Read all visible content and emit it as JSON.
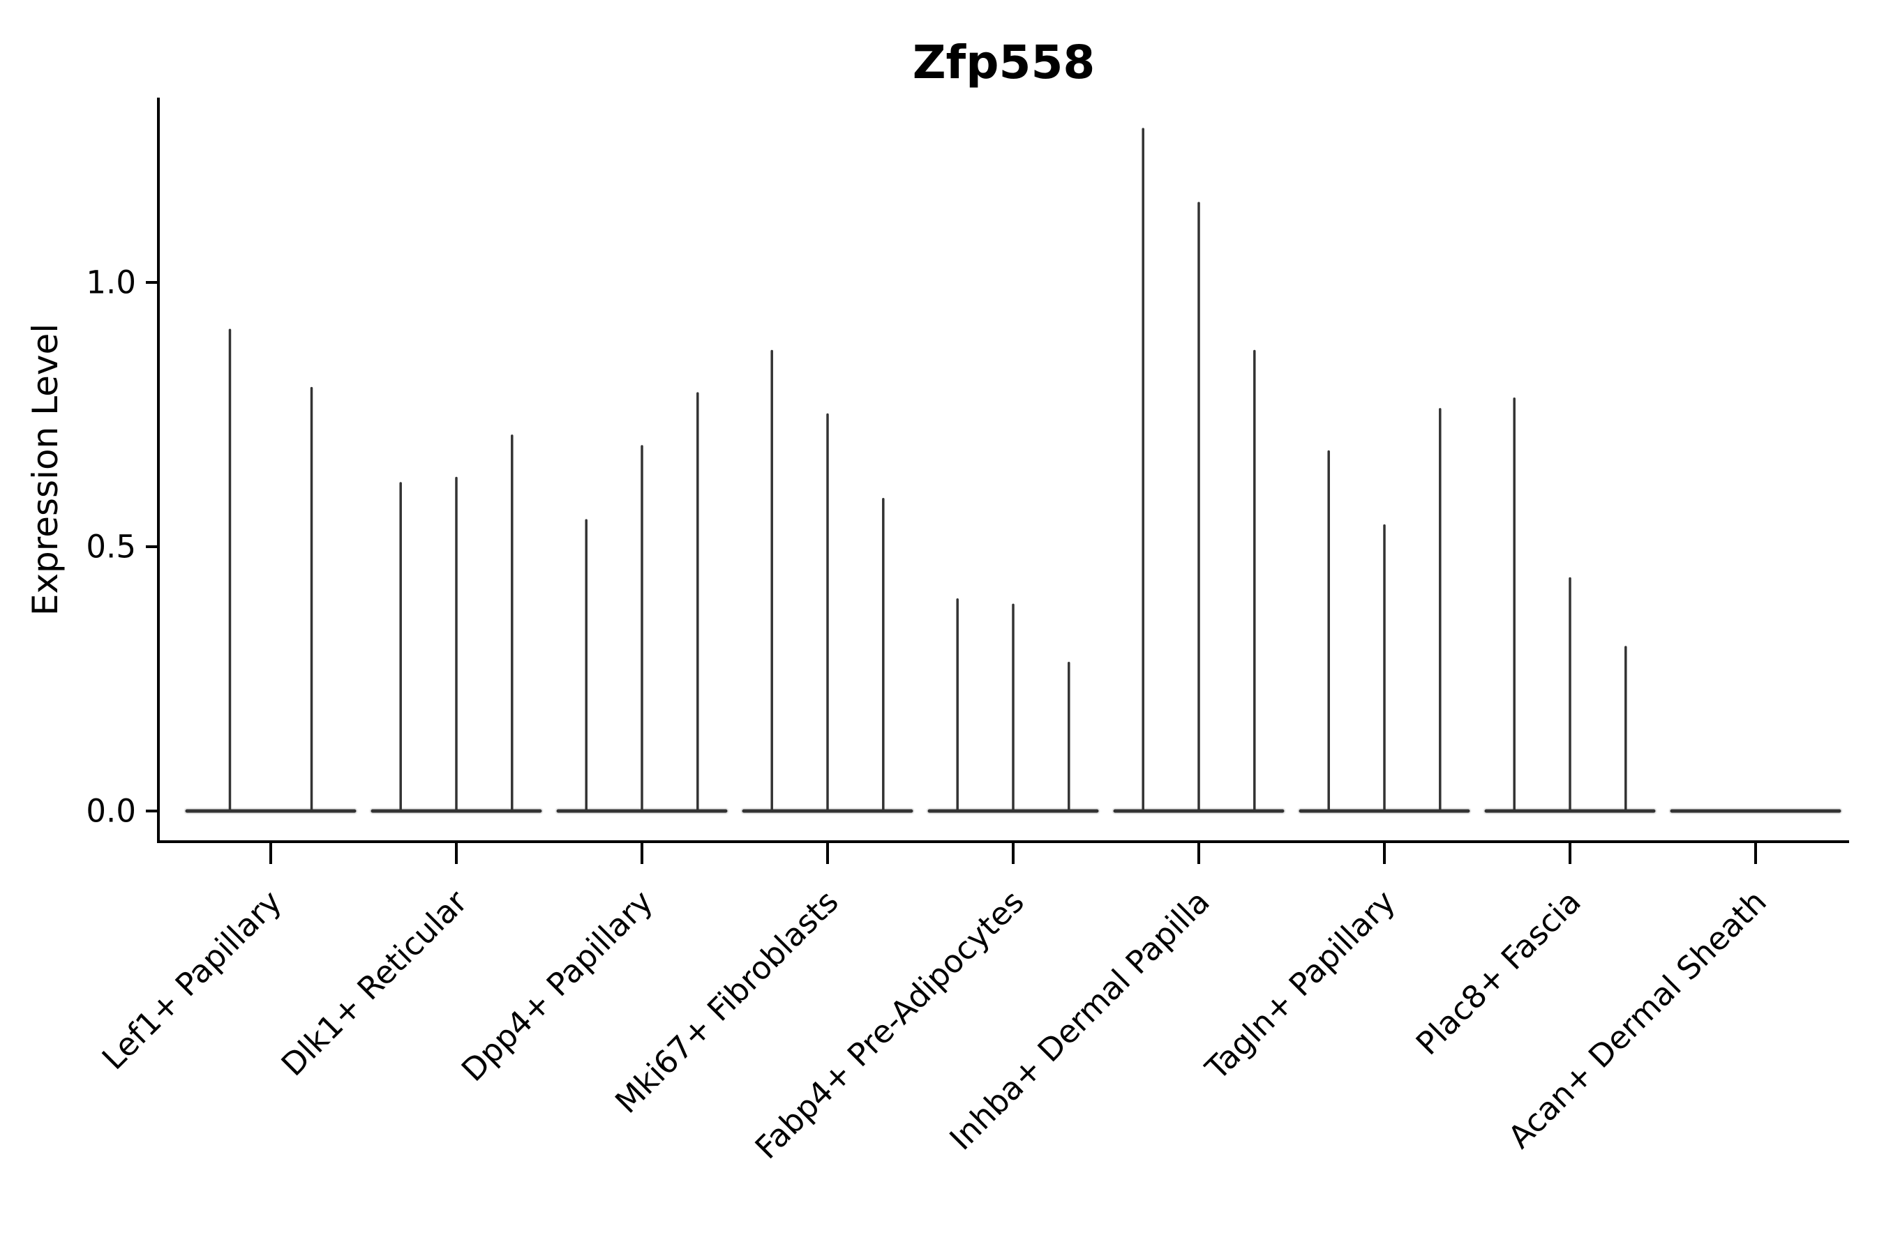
{
  "figure": {
    "background": "#ffffff",
    "ink_color": "#000000",
    "violin_color": "#333333",
    "violin_fill_hint": "#bbbbbb"
  },
  "chart_data": {
    "type": "violin",
    "title": "Zfp558",
    "xlabel": "",
    "ylabel": "Expression Level",
    "grid": false,
    "legend_position": "none",
    "ylim": [
      -0.06,
      1.35
    ],
    "ytick_labels": [
      "0.0",
      "0.5",
      "1.0"
    ],
    "ytick_values": [
      0.0,
      0.5,
      1.0
    ],
    "categories": [
      "Lef1+ Papillary",
      "Dlk1+ Reticular",
      "Dpp4+ Papillary",
      "Mki67+ Fibroblasts",
      "Fabp4+ Pre-Adipocytes",
      "Inhba+ Dermal Papilla",
      "Tagln+ Papillary",
      "Plac8+ Fascia",
      "Acan+ Dermal Sheath"
    ],
    "groups": [
      {
        "category": "Lef1+ Papillary",
        "violins": [
          {
            "pos": -0.22,
            "max": 0.91
          },
          {
            "pos": 0.22,
            "max": 0.8
          }
        ]
      },
      {
        "category": "Dlk1+ Reticular",
        "violins": [
          {
            "pos": -0.3,
            "max": 0.62
          },
          {
            "pos": 0.0,
            "max": 0.63
          },
          {
            "pos": 0.3,
            "max": 0.71
          }
        ]
      },
      {
        "category": "Dpp4+ Papillary",
        "violins": [
          {
            "pos": -0.3,
            "max": 0.55
          },
          {
            "pos": 0.0,
            "max": 0.69
          },
          {
            "pos": 0.3,
            "max": 0.79
          }
        ]
      },
      {
        "category": "Mki67+ Fibroblasts",
        "violins": [
          {
            "pos": -0.3,
            "max": 0.87
          },
          {
            "pos": 0.0,
            "max": 0.75
          },
          {
            "pos": 0.3,
            "max": 0.59
          }
        ]
      },
      {
        "category": "Fabp4+ Pre-Adipocytes",
        "violins": [
          {
            "pos": -0.3,
            "max": 0.4
          },
          {
            "pos": 0.0,
            "max": 0.39
          },
          {
            "pos": 0.3,
            "max": 0.28
          }
        ]
      },
      {
        "category": "Inhba+ Dermal Papilla",
        "violins": [
          {
            "pos": -0.3,
            "max": 1.29
          },
          {
            "pos": 0.0,
            "max": 1.15
          },
          {
            "pos": 0.3,
            "max": 0.87
          }
        ]
      },
      {
        "category": "Tagln+ Papillary",
        "violins": [
          {
            "pos": -0.3,
            "max": 0.68
          },
          {
            "pos": 0.0,
            "max": 0.54
          },
          {
            "pos": 0.3,
            "max": 0.76
          }
        ]
      },
      {
        "category": "Plac8+ Fascia",
        "violins": [
          {
            "pos": -0.3,
            "max": 0.78
          },
          {
            "pos": 0.0,
            "max": 0.44
          },
          {
            "pos": 0.3,
            "max": 0.31
          }
        ]
      },
      {
        "category": "Acan+ Dermal Sheath",
        "violins": []
      }
    ]
  }
}
